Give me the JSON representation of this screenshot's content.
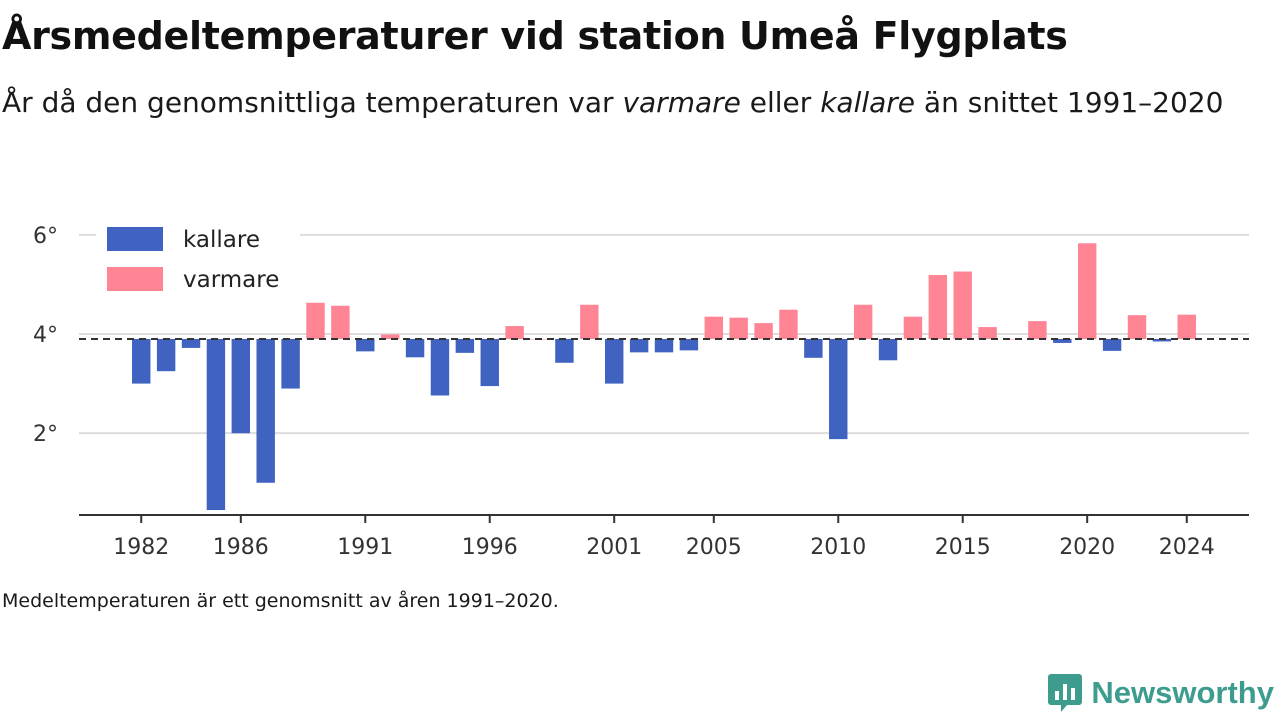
{
  "title": "Årsmedeltemperaturer vid station Umeå Flygplats",
  "subtitle": {
    "part1": "År då den genomsnittliga temperaturen var ",
    "warm_word": "varmare",
    "part2": " eller ",
    "cold_word": "kallare",
    "part3": " än snittet 1991–2020"
  },
  "footnote": "Medeltemperaturen är ett genomsnitt av åren 1991–2020.",
  "brand": "Newsworthy",
  "colors": {
    "colder": "#4062c0",
    "warmer": "#ff8595",
    "baseline": "#333333",
    "grid": "#dddddd",
    "brand": "#3e9c8f"
  },
  "chart_data": {
    "type": "bar",
    "baseline": 3.9,
    "ylim": [
      0.35,
      6.4
    ],
    "xlim": [
      1979.5,
      2026.5
    ],
    "y_ticks": [
      {
        "value": 2,
        "label": "2°"
      },
      {
        "value": 4,
        "label": "4°"
      },
      {
        "value": 6,
        "label": "6°"
      }
    ],
    "x_ticks": [
      {
        "value": 1982,
        "label": "1982"
      },
      {
        "value": 1986,
        "label": "1986"
      },
      {
        "value": 1991,
        "label": "1991"
      },
      {
        "value": 1996,
        "label": "1996"
      },
      {
        "value": 2001,
        "label": "2001"
      },
      {
        "value": 2005,
        "label": "2005"
      },
      {
        "value": 2010,
        "label": "2010"
      },
      {
        "value": 2015,
        "label": "2015"
      },
      {
        "value": 2020,
        "label": "2020"
      },
      {
        "value": 2024,
        "label": "2024"
      }
    ],
    "legend": [
      {
        "key": "colder",
        "label": "kallare"
      },
      {
        "key": "warmer",
        "label": "varmare"
      }
    ],
    "legend_position": "top-left",
    "grid": true,
    "x": [
      1982,
      1983,
      1984,
      1985,
      1986,
      1987,
      1988,
      1989,
      1990,
      1991,
      1992,
      1993,
      1994,
      1995,
      1996,
      1997,
      1998,
      1999,
      2000,
      2001,
      2002,
      2003,
      2004,
      2005,
      2006,
      2007,
      2008,
      2009,
      2010,
      2011,
      2012,
      2013,
      2014,
      2015,
      2016,
      2017,
      2018,
      2019,
      2020,
      2021,
      2022,
      2023,
      2024
    ],
    "values": [
      3.0,
      3.25,
      3.72,
      0.45,
      2.0,
      1.0,
      2.9,
      4.63,
      4.57,
      3.65,
      3.99,
      3.53,
      2.76,
      3.62,
      2.95,
      4.16,
      3.9,
      3.42,
      4.59,
      3.0,
      3.63,
      3.63,
      3.67,
      4.35,
      4.33,
      4.22,
      4.49,
      3.52,
      1.88,
      4.59,
      3.47,
      4.35,
      5.19,
      5.26,
      4.14,
      3.9,
      4.26,
      3.82,
      5.83,
      3.66,
      4.38,
      3.85,
      4.39
    ]
  }
}
